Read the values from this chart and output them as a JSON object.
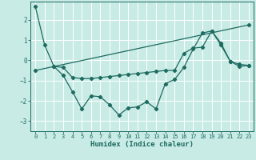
{
  "background_color": "#c8ebe6",
  "grid_color": "#ffffff",
  "line_color": "#1e6b60",
  "xlabel": "Humidex (Indice chaleur)",
  "xlim": [
    -0.5,
    23.5
  ],
  "ylim": [
    -3.5,
    2.9
  ],
  "xticks": [
    0,
    1,
    2,
    3,
    4,
    5,
    6,
    7,
    8,
    9,
    10,
    11,
    12,
    13,
    14,
    15,
    16,
    17,
    18,
    19,
    20,
    21,
    22,
    23
  ],
  "yticks": [
    -3,
    -2,
    -1,
    0,
    1,
    2
  ],
  "line1_x": [
    0,
    1,
    2,
    3,
    4,
    5,
    6,
    7,
    8,
    9,
    10,
    11,
    12,
    13,
    14,
    15,
    16,
    17,
    18,
    19,
    20,
    21,
    22,
    23
  ],
  "line1_y": [
    2.65,
    0.75,
    -0.3,
    -0.75,
    -1.55,
    -2.4,
    -1.75,
    -1.8,
    -2.2,
    -2.7,
    -2.35,
    -2.3,
    -2.05,
    -2.4,
    -1.15,
    -0.95,
    -0.35,
    0.55,
    1.35,
    1.45,
    0.75,
    -0.05,
    -0.3,
    -0.25
  ],
  "line2_x": [
    0,
    23
  ],
  "line2_y": [
    -0.5,
    1.75
  ],
  "line3_x": [
    2,
    3,
    4,
    5,
    6,
    7,
    8,
    9,
    10,
    11,
    12,
    13,
    14,
    15,
    16,
    17,
    18,
    19,
    20,
    21,
    22,
    23
  ],
  "line3_y": [
    -0.3,
    -0.35,
    -0.85,
    -0.9,
    -0.9,
    -0.85,
    -0.8,
    -0.75,
    -0.7,
    -0.65,
    -0.6,
    -0.55,
    -0.5,
    -0.5,
    0.35,
    0.6,
    0.65,
    1.45,
    0.85,
    -0.05,
    -0.2,
    -0.25
  ]
}
